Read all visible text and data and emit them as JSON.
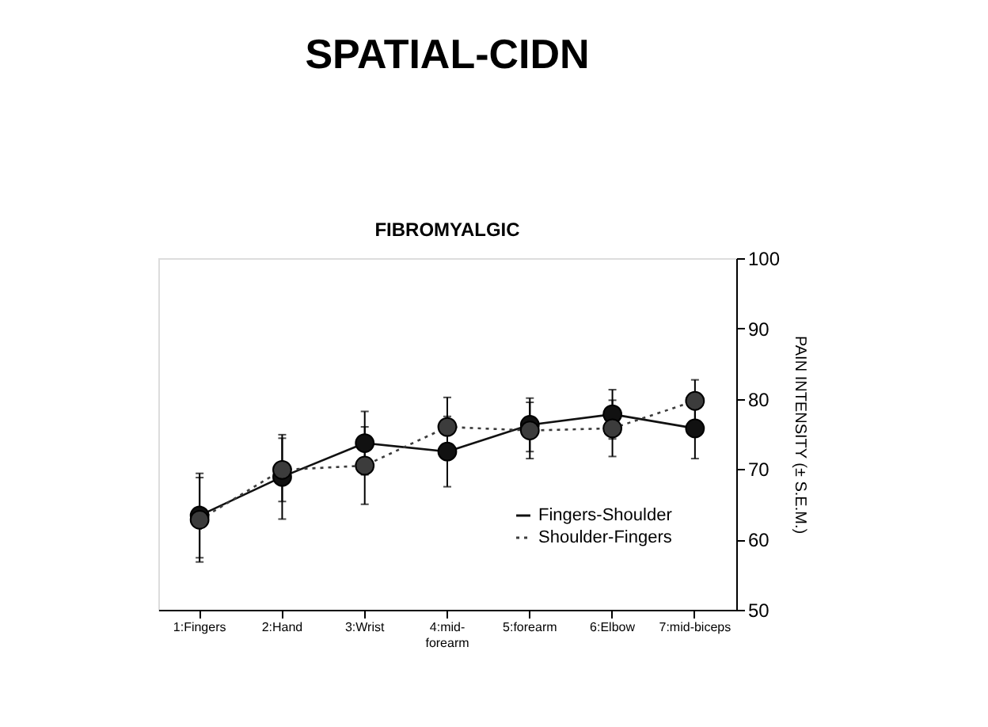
{
  "chart_data": {
    "type": "line",
    "title": "SPATIAL-CIDN",
    "subtitle": "FIBROMYALGIC",
    "ylabel": "PAIN INTENSITY (± S.E.M.)",
    "categories": [
      "1:Fingers",
      "2:Hand",
      "3:Wrist",
      "4:mid-forearm",
      "5:forearm",
      "6:Elbow",
      "7:mid-biceps"
    ],
    "series": [
      {
        "name": "Fingers-Shoulder",
        "color": "#111111",
        "line_style": "solid",
        "values": [
          63.4,
          68.9,
          73.7,
          72.5,
          76.3,
          77.8,
          75.8
        ],
        "errors": [
          6,
          6,
          4.5,
          5,
          3.8,
          3.5,
          4.3
        ]
      },
      {
        "name": "Shoulder-Fingers",
        "color": "#3c3c3c",
        "line_style": "dotted",
        "values": [
          62.8,
          69.9,
          70.5,
          76,
          75.5,
          75.8,
          79.7
        ],
        "errors": [
          6,
          4.5,
          5.5,
          4.2,
          4,
          4,
          3
        ]
      }
    ],
    "ylim": [
      50,
      100
    ],
    "yticks": [
      50,
      60,
      70,
      80,
      90,
      100
    ],
    "grid": false,
    "legend": "bottom right",
    "marker": "circle"
  }
}
